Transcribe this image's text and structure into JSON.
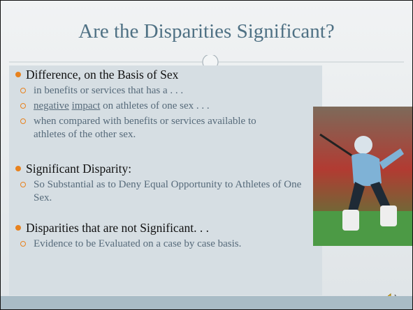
{
  "title": "Are the Disparities Significant?",
  "bullets": [
    {
      "text": "Difference, on the Basis of Sex",
      "subitems": [
        "in benefits or services that has a . . .",
        {
          "parts": [
            "negative",
            "impact",
            "on athletes of one sex . . ."
          ]
        },
        "when compared with benefits or services available to athletes of the other sex."
      ]
    },
    {
      "text": "Significant Disparity:",
      "subitems": [
        "So Substantial as to Deny Equal Opportunity to Athletes of One Sex."
      ]
    },
    {
      "text": "Disparities that are not Significant. . .",
      "subitems": [
        "Evidence to be Evaluated on a case by case basis."
      ]
    }
  ]
}
